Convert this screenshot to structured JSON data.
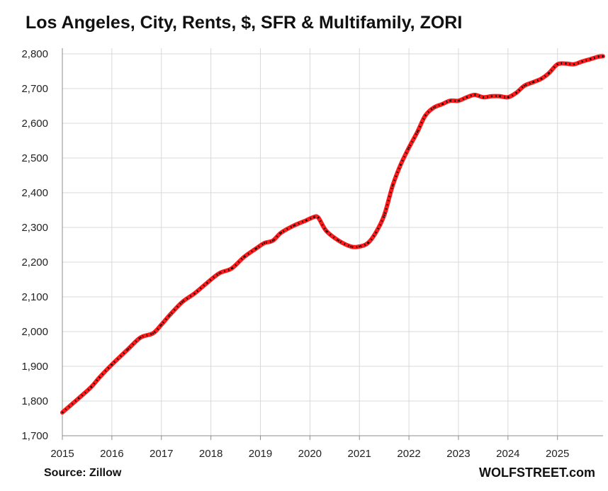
{
  "title": "Los Angeles, City, Rents, $, SFR & Multifamily, ZORI",
  "source": "Source: Zillow",
  "brand": "WOLFSTREET.com",
  "colors": {
    "line": "#ff1a1a",
    "marker": "#111111",
    "grid": "#d9d9d9",
    "axis": "#8c8c8c"
  },
  "chart_data": {
    "type": "line",
    "title": "Los Angeles, City, Rents, $, SFR & Multifamily, ZORI",
    "xlabel": "",
    "ylabel": "",
    "ylim": [
      1700,
      2800
    ],
    "xlim": [
      2015,
      2025.92
    ],
    "y_ticks": [
      "1,700",
      "1,800",
      "1,900",
      "2,000",
      "2,100",
      "2,200",
      "2,300",
      "2,400",
      "2,500",
      "2,600",
      "2,700",
      "2,800"
    ],
    "x_ticks": [
      "2015",
      "2016",
      "2017",
      "2018",
      "2019",
      "2020",
      "2021",
      "2022",
      "2023",
      "2024",
      "2025"
    ],
    "grid": true,
    "legend": "none",
    "series": [
      {
        "x": [
          2015.0,
          2015.33,
          2015.58,
          2015.75,
          2016.0,
          2016.33,
          2016.58,
          2016.83,
          2017.0,
          2017.17,
          2017.42,
          2017.67,
          2017.92,
          2018.17,
          2018.42,
          2018.67,
          2018.92,
          2019.08,
          2019.25,
          2019.42,
          2019.67,
          2019.92,
          2020.08,
          2020.17,
          2020.33,
          2020.58,
          2020.83,
          2021.0,
          2021.17,
          2021.33,
          2021.5,
          2021.67,
          2021.83,
          2022.0,
          2022.17,
          2022.33,
          2022.5,
          2022.67,
          2022.83,
          2023.0,
          2023.17,
          2023.33,
          2023.5,
          2023.67,
          2023.83,
          2024.0,
          2024.17,
          2024.33,
          2024.5,
          2024.67,
          2024.83,
          2025.0,
          2025.17,
          2025.33,
          2025.5,
          2025.67,
          2025.83,
          2025.92
        ],
        "values": [
          1767,
          1808,
          1840,
          1868,
          1905,
          1950,
          1983,
          1995,
          2020,
          2048,
          2085,
          2110,
          2140,
          2168,
          2182,
          2215,
          2240,
          2255,
          2262,
          2285,
          2305,
          2320,
          2330,
          2328,
          2290,
          2262,
          2245,
          2245,
          2255,
          2285,
          2335,
          2420,
          2480,
          2530,
          2575,
          2622,
          2645,
          2655,
          2665,
          2665,
          2675,
          2682,
          2675,
          2678,
          2678,
          2675,
          2688,
          2708,
          2718,
          2728,
          2745,
          2770,
          2772,
          2770,
          2778,
          2785,
          2792,
          2793
        ]
      }
    ]
  }
}
